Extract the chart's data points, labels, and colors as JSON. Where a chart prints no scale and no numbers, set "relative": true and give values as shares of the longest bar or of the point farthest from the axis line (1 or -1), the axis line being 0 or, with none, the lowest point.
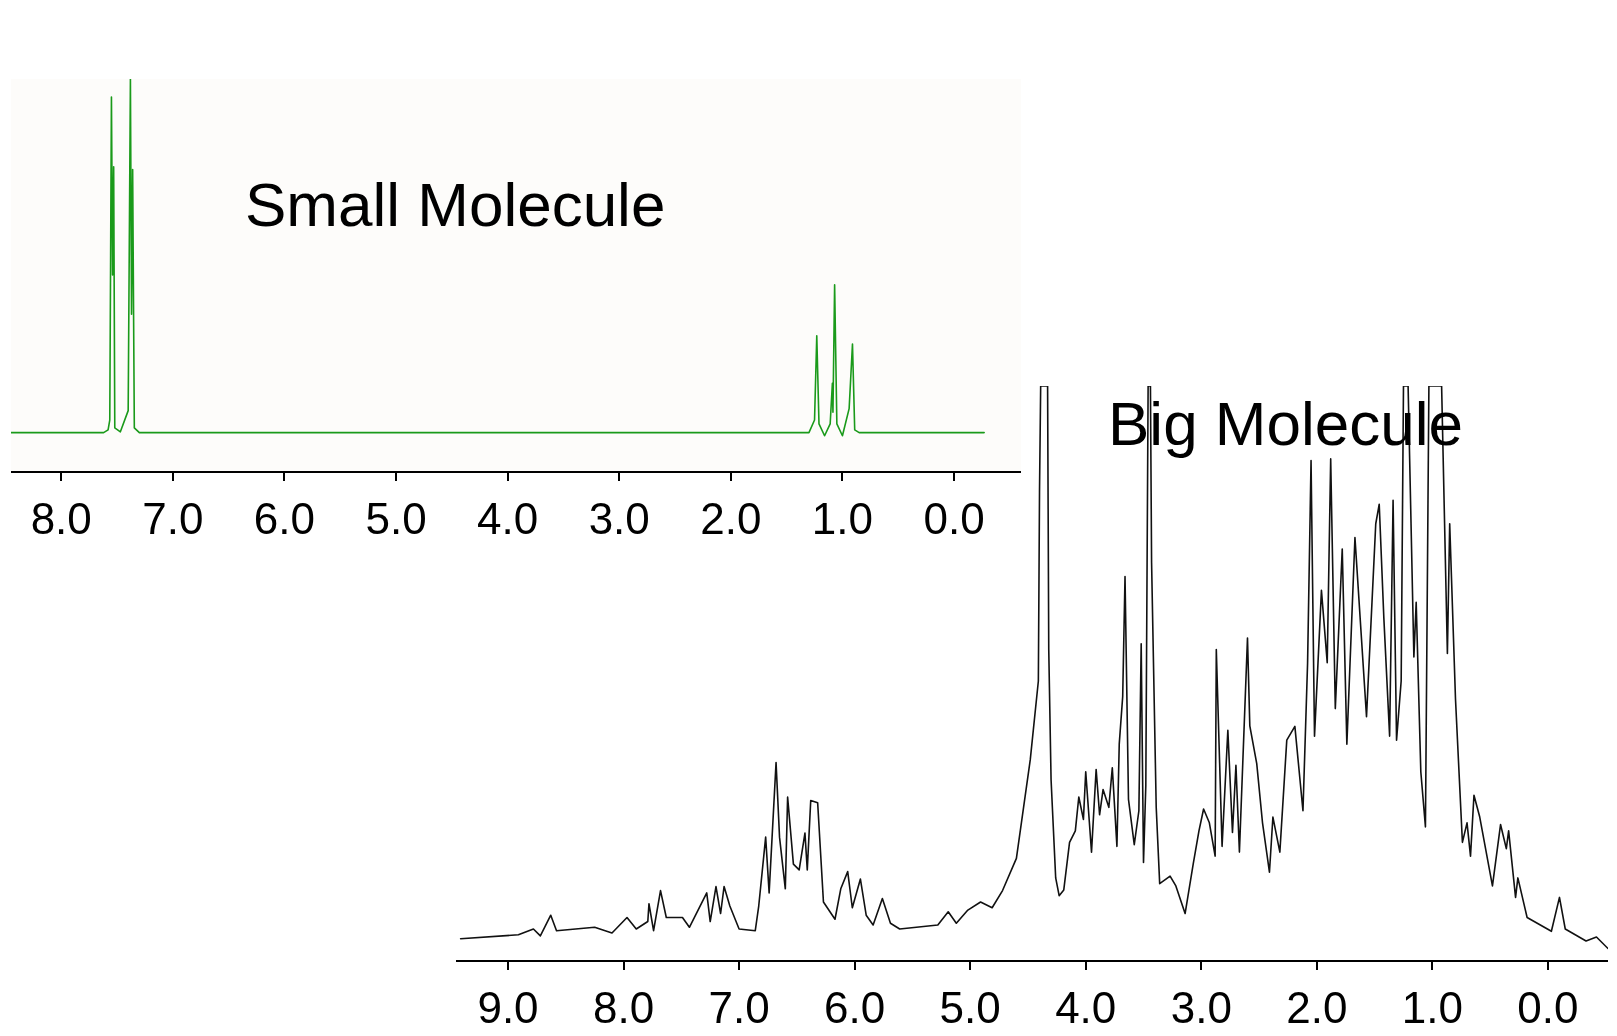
{
  "chart_data": [
    {
      "type": "line",
      "title": "Small Molecule",
      "relative": true,
      "tick_labels": "x",
      "xlim": [
        8.45,
        -0.6
      ],
      "xticks": [
        {
          "value": 8,
          "label": "8.0"
        },
        {
          "value": 7,
          "label": "7.0"
        },
        {
          "value": 6,
          "label": "6.0"
        },
        {
          "value": 5,
          "label": "5.0"
        },
        {
          "value": 4,
          "label": "4.0"
        },
        {
          "value": 3,
          "label": "3.0"
        },
        {
          "value": 2,
          "label": "2.0"
        },
        {
          "value": 1,
          "label": "1.0"
        },
        {
          "value": 0,
          "label": "0.0"
        }
      ],
      "series": [
        {
          "color": "#1a9a1a",
          "x": [
            8.45,
            7.62,
            7.58,
            7.565,
            7.55,
            7.54,
            7.53,
            7.52,
            7.47,
            7.4,
            7.38,
            7.37,
            7.36,
            7.345,
            7.3,
            1.3,
            1.25,
            1.23,
            1.21,
            1.16,
            1.11,
            1.09,
            1.085,
            1.07,
            1.05,
            1.0,
            0.94,
            0.91,
            0.89,
            0.85,
            -0.27
          ],
          "values": [
            0.098,
            0.098,
            0.105,
            0.13,
            0.954,
            0.5,
            0.776,
            0.11,
            0.1,
            0.154,
            1,
            0.4,
            0.769,
            0.11,
            0.098,
            0.098,
            0.13,
            0.345,
            0.12,
            0.09,
            0.12,
            0.224,
            0.15,
            0.475,
            0.12,
            0.09,
            0.159,
            0.324,
            0.105,
            0.098,
            0.098
          ]
        }
      ]
    },
    {
      "type": "line",
      "title": "Big Molecule",
      "relative": true,
      "tick_labels": "x",
      "xlim": [
        9.45,
        -0.52
      ],
      "xticks": [
        {
          "value": 9,
          "label": "9.0"
        },
        {
          "value": 8,
          "label": "8.0"
        },
        {
          "value": 7,
          "label": "7.0"
        },
        {
          "value": 6,
          "label": "6.0"
        },
        {
          "value": 5,
          "label": "5.0"
        },
        {
          "value": 4,
          "label": "4.0"
        },
        {
          "value": 3,
          "label": "3.0"
        },
        {
          "value": 2,
          "label": "2.0"
        },
        {
          "value": 1,
          "label": "1.0"
        },
        {
          "value": 0,
          "label": "0.0"
        }
      ],
      "series": [
        {
          "color": "#111111",
          "x": [
            9.41,
            8.91,
            8.78,
            8.72,
            8.63,
            8.58,
            8.25,
            8.1,
            7.97,
            7.89,
            7.79,
            7.78,
            7.74,
            7.68,
            7.63,
            7.49,
            7.43,
            7.28,
            7.25,
            7.2,
            7.16,
            7.13,
            7.08,
            7.0,
            6.86,
            6.83,
            6.77,
            6.74,
            6.68,
            6.65,
            6.6,
            6.58,
            6.53,
            6.48,
            6.43,
            6.41,
            6.38,
            6.32,
            6.27,
            6.17,
            6.12,
            6.06,
            6.02,
            5.95,
            5.9,
            5.84,
            5.76,
            5.69,
            5.61,
            5.28,
            5.19,
            5.12,
            5.02,
            4.91,
            4.81,
            4.72,
            4.6,
            4.48,
            4.41,
            4.4,
            4.39,
            4.33,
            4.32,
            4.3,
            4.26,
            4.23,
            4.19,
            4.14,
            4.09,
            4.06,
            4.02,
            4.0,
            3.95,
            3.91,
            3.88,
            3.85,
            3.8,
            3.77,
            3.73,
            3.71,
            3.68,
            3.66,
            3.63,
            3.58,
            3.54,
            3.52,
            3.5,
            3.48,
            3.46,
            3.44,
            3.43,
            3.39,
            3.36,
            3.27,
            3.22,
            3.14,
            3.07,
            3.02,
            2.98,
            2.93,
            2.88,
            2.87,
            2.82,
            2.77,
            2.73,
            2.7,
            2.67,
            2.6,
            2.58,
            2.52,
            2.47,
            2.41,
            2.38,
            2.32,
            2.26,
            2.19,
            2.12,
            2.08,
            2.05,
            2.02,
            1.96,
            1.91,
            1.88,
            1.84,
            1.78,
            1.74,
            1.67,
            1.57,
            1.49,
            1.46,
            1.42,
            1.37,
            1.34,
            1.31,
            1.27,
            1.25,
            1.21,
            1.16,
            1.14,
            1.1,
            1.06,
            1.03,
            1.01,
            0.92,
            0.87,
            0.85,
            0.8,
            0.74,
            0.7,
            0.67,
            0.64,
            0.59,
            0.48,
            0.41,
            0.36,
            0.34,
            0.28,
            0.26,
            0.18,
            -0.03,
            -0.1,
            -0.15,
            -0.33,
            -0.42,
            -0.52
          ],
          "values": [
            0.037,
            0.044,
            0.054,
            0.042,
            0.078,
            0.051,
            0.057,
            0.047,
            0.074,
            0.054,
            0.067,
            0.098,
            0.051,
            0.121,
            0.074,
            0.074,
            0.057,
            0.117,
            0.067,
            0.128,
            0.081,
            0.128,
            0.094,
            0.054,
            0.051,
            0.094,
            0.214,
            0.117,
            0.344,
            0.214,
            0.124,
            0.284,
            0.167,
            0.157,
            0.221,
            0.157,
            0.278,
            0.274,
            0.101,
            0.071,
            0.124,
            0.154,
            0.091,
            0.141,
            0.078,
            0.061,
            0.107,
            0.064,
            0.054,
            0.061,
            0.084,
            0.064,
            0.087,
            0.101,
            0.091,
            0.121,
            0.177,
            0.349,
            0.486,
            0.815,
            1,
            1,
            0.541,
            0.314,
            0.143,
            0.112,
            0.122,
            0.205,
            0.225,
            0.284,
            0.245,
            0.328,
            0.188,
            0.332,
            0.253,
            0.297,
            0.266,
            0.335,
            0.198,
            0.376,
            0.459,
            0.668,
            0.28,
            0.201,
            0.26,
            0.551,
            0.17,
            0.304,
            1,
            1,
            0.692,
            0.266,
            0.133,
            0.146,
            0.129,
            0.081,
            0.167,
            0.225,
            0.263,
            0.239,
            0.181,
            0.541,
            0.198,
            0.4,
            0.222,
            0.339,
            0.188,
            0.561,
            0.408,
            0.342,
            0.239,
            0.153,
            0.249,
            0.188,
            0.383,
            0.407,
            0.26,
            0.517,
            0.87,
            0.39,
            0.644,
            0.518,
            0.873,
            0.438,
            0.716,
            0.376,
            0.736,
            0.424,
            0.76,
            0.794,
            0.596,
            0.39,
            0.801,
            0.383,
            0.486,
            1,
            1,
            0.528,
            0.623,
            0.328,
            0.232,
            1,
            1,
            1,
            0.534,
            0.76,
            0.455,
            0.205,
            0.239,
            0.181,
            0.287,
            0.249,
            0.129,
            0.236,
            0.194,
            0.225,
            0.109,
            0.143,
            0.074,
            0.05,
            0.109,
            0.054,
            0.033,
            0.04,
            0.02
          ]
        }
      ]
    }
  ]
}
